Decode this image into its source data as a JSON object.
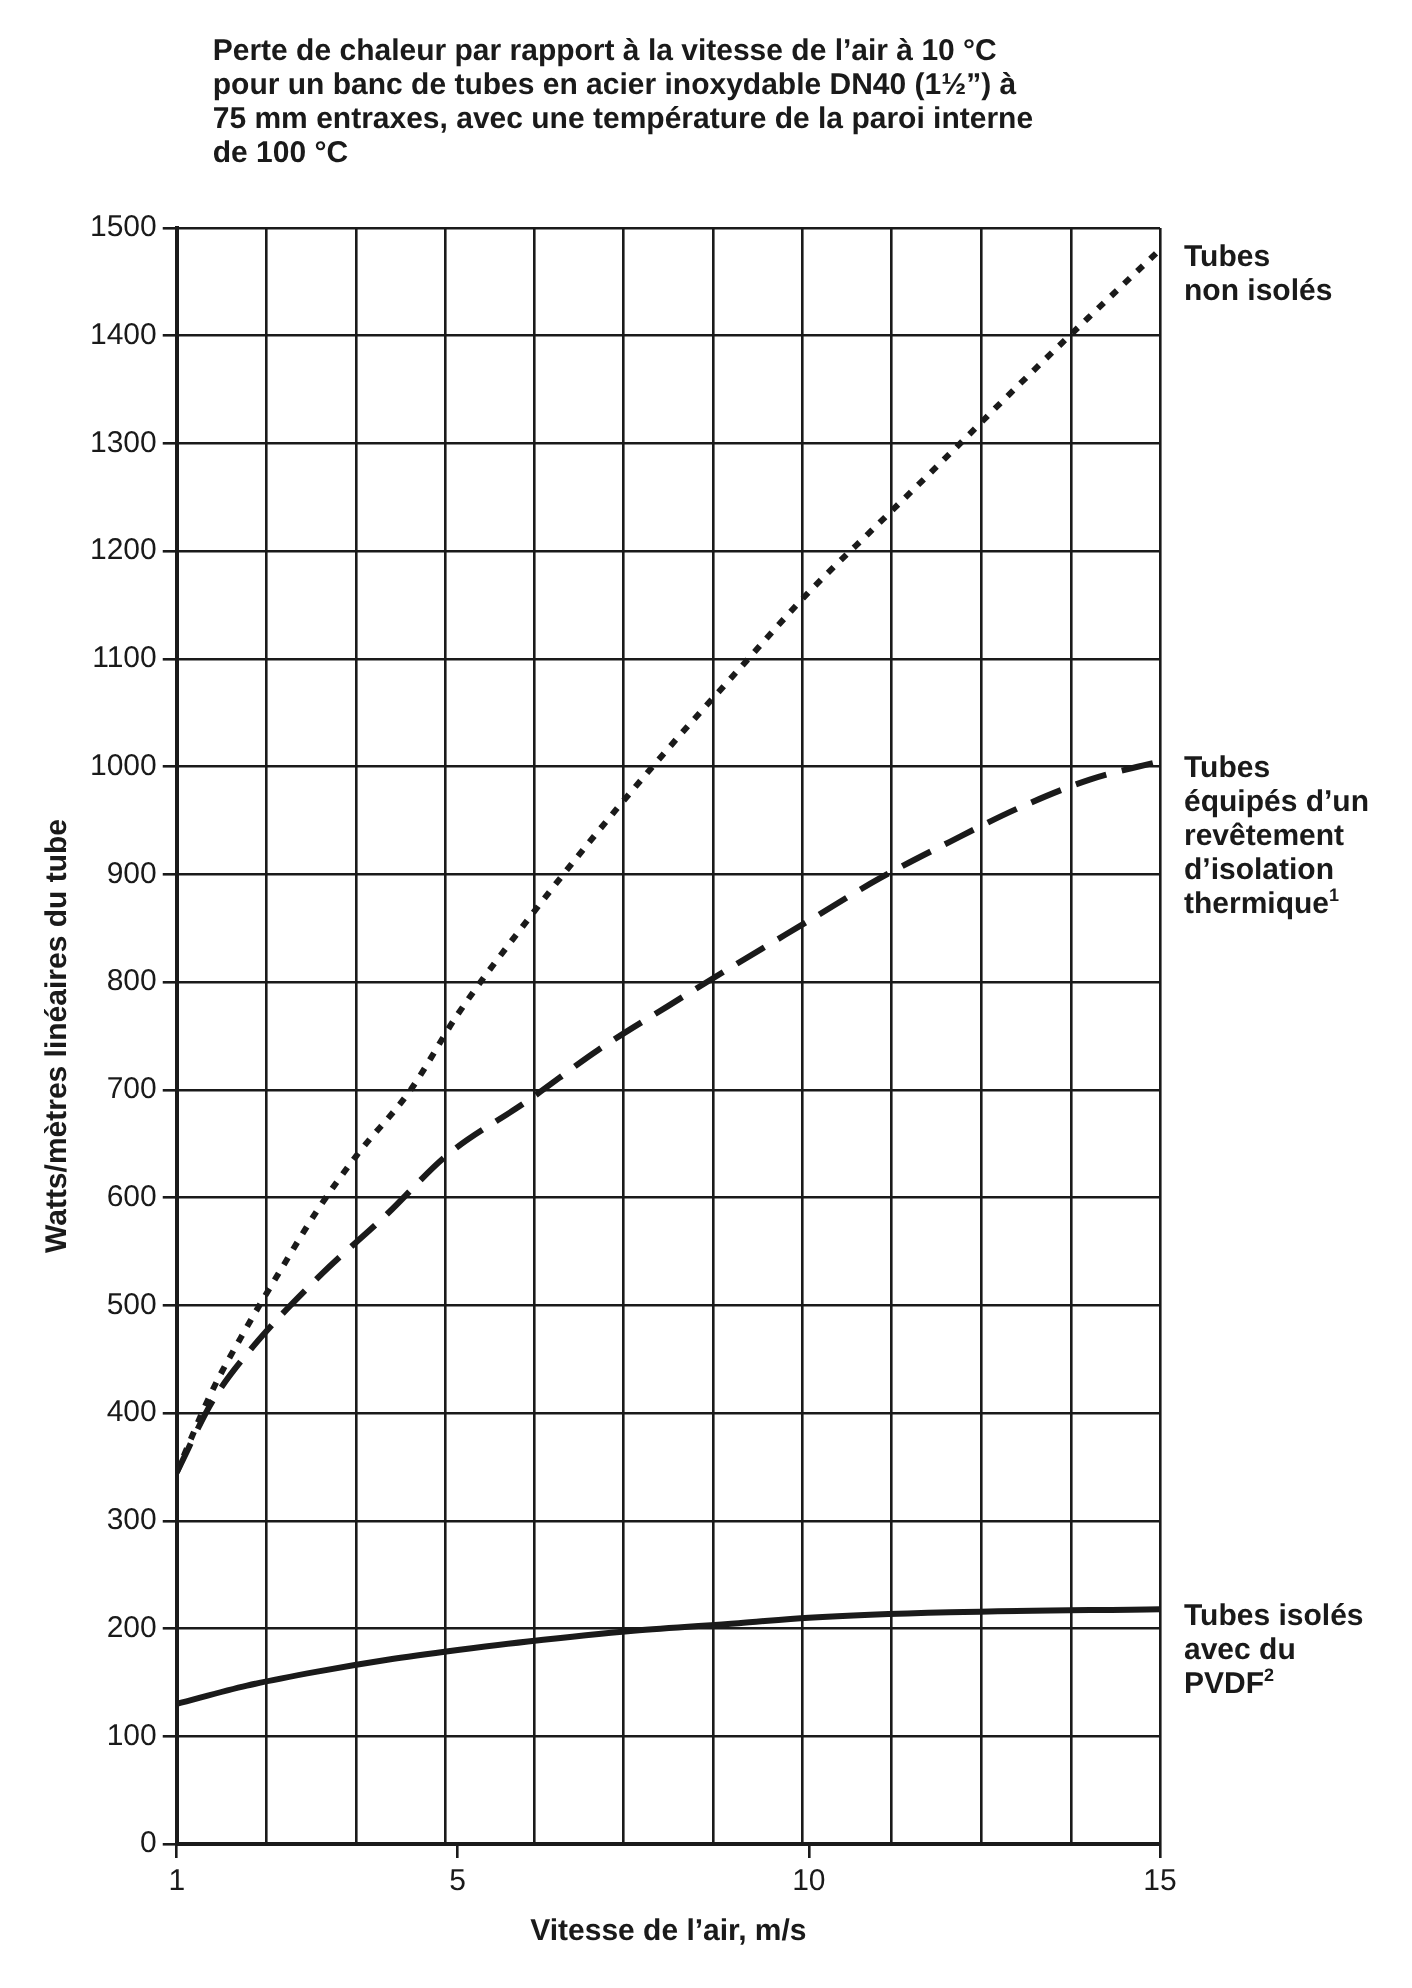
{
  "chart_data": {
    "type": "line",
    "title": "Perte de chaleur par rapport à la vitesse de l’air à 10 °C pour un banc de tubes en acier inoxydable DN40 (1½”) à 75 mm entraxes, avec une température de la paroi interne de 100 °C",
    "xlabel": "Vitesse de l’air, m/s",
    "ylabel": "Watts/mètres linéaires du tube",
    "xlim": [
      1,
      15
    ],
    "xticks": [
      1,
      {
        "value": 2.27,
        "label": null
      },
      {
        "value": 3.55,
        "label": null
      },
      {
        "value": 4.82,
        "label": null
      },
      5,
      {
        "value": 6.09,
        "label": null
      },
      {
        "value": 7.36,
        "label": null
      },
      {
        "value": 8.64,
        "label": null
      },
      {
        "value": 9.91,
        "label": null
      },
      10,
      {
        "value": 11.18,
        "label": null
      },
      {
        "value": 12.45,
        "label": null
      },
      {
        "value": 13.73,
        "label": null
      },
      15
    ],
    "ylim": [
      0,
      1500
    ],
    "yticks": [
      0,
      100,
      200,
      300,
      400,
      500,
      600,
      700,
      800,
      900,
      1000,
      1100,
      1200,
      1300,
      1400,
      1500
    ],
    "grid": true,
    "marker": "none",
    "series": [
      {
        "name": "Tubes\nnon isolés",
        "color": "#1a1a1a",
        "line_style": "dotted",
        "x": [
          1,
          1.5,
          2,
          2.5,
          3,
          3.56,
          4.33,
          5,
          6,
          7,
          8,
          9,
          10,
          11,
          12,
          13,
          14,
          15
        ],
        "values": [
          345,
          420,
          480,
          535,
          588,
          639,
          700,
          770,
          858,
          940,
          1017,
          1090,
          1162,
          1226,
          1290,
          1355,
          1418,
          1480
        ]
      },
      {
        "name": "Tubes\néquipés d’un\nrevêtement\nd’isolation\nthermique$^{1}$",
        "color": "#1a1a1a",
        "line_style": "dashed",
        "x": [
          1,
          1.5,
          2,
          3,
          4,
          4.84,
          6,
          7,
          8,
          9,
          10,
          11,
          12,
          13,
          14,
          15
        ],
        "values": [
          345,
          410,
          455,
          525,
          585,
          639,
          690,
          737,
          778,
          818,
          857,
          896,
          930,
          962,
          988,
          1005
        ]
      },
      {
        "name": "Tubes isolés\navec du\nPVDF$^{2}$",
        "color": "#1a1a1a",
        "line_style": "solid",
        "x": [
          1,
          2,
          3,
          4,
          5,
          6,
          7.5,
          9,
          10,
          12,
          15
        ],
        "values": [
          130,
          147,
          160,
          171,
          180,
          188,
          198,
          205,
          210,
          215,
          218
        ]
      }
    ]
  }
}
